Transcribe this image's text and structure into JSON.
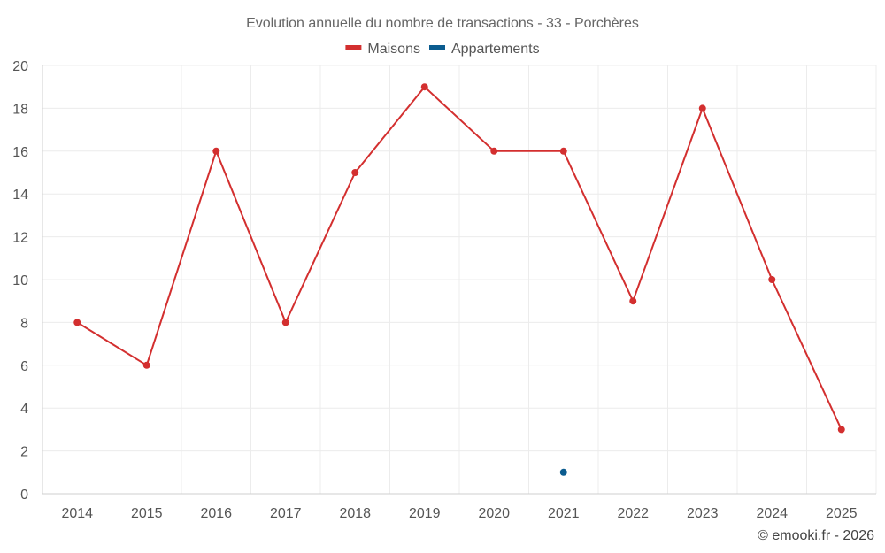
{
  "chart_data": {
    "type": "line",
    "title": "Evolution annuelle du nombre de transactions - 33 - Porchères",
    "categories": [
      "2014",
      "2015",
      "2016",
      "2017",
      "2018",
      "2019",
      "2020",
      "2021",
      "2022",
      "2023",
      "2024",
      "2025"
    ],
    "series": [
      {
        "name": "Maisons",
        "color": "#d32f2f",
        "values": [
          8,
          6,
          16,
          8,
          15,
          19,
          16,
          16,
          9,
          18,
          10,
          3
        ]
      },
      {
        "name": "Appartements",
        "color": "#0b5c8f",
        "values": [
          null,
          null,
          null,
          null,
          null,
          null,
          null,
          1,
          null,
          null,
          null,
          null
        ]
      }
    ],
    "ylim": [
      0,
      20
    ],
    "yticks": [
      "0",
      "2",
      "4",
      "6",
      "8",
      "10",
      "12",
      "14",
      "16",
      "18",
      "20"
    ],
    "grid": true,
    "legend": "top-center",
    "xlabel": "",
    "ylabel": ""
  },
  "credit": "© emooki.fr - 2026"
}
